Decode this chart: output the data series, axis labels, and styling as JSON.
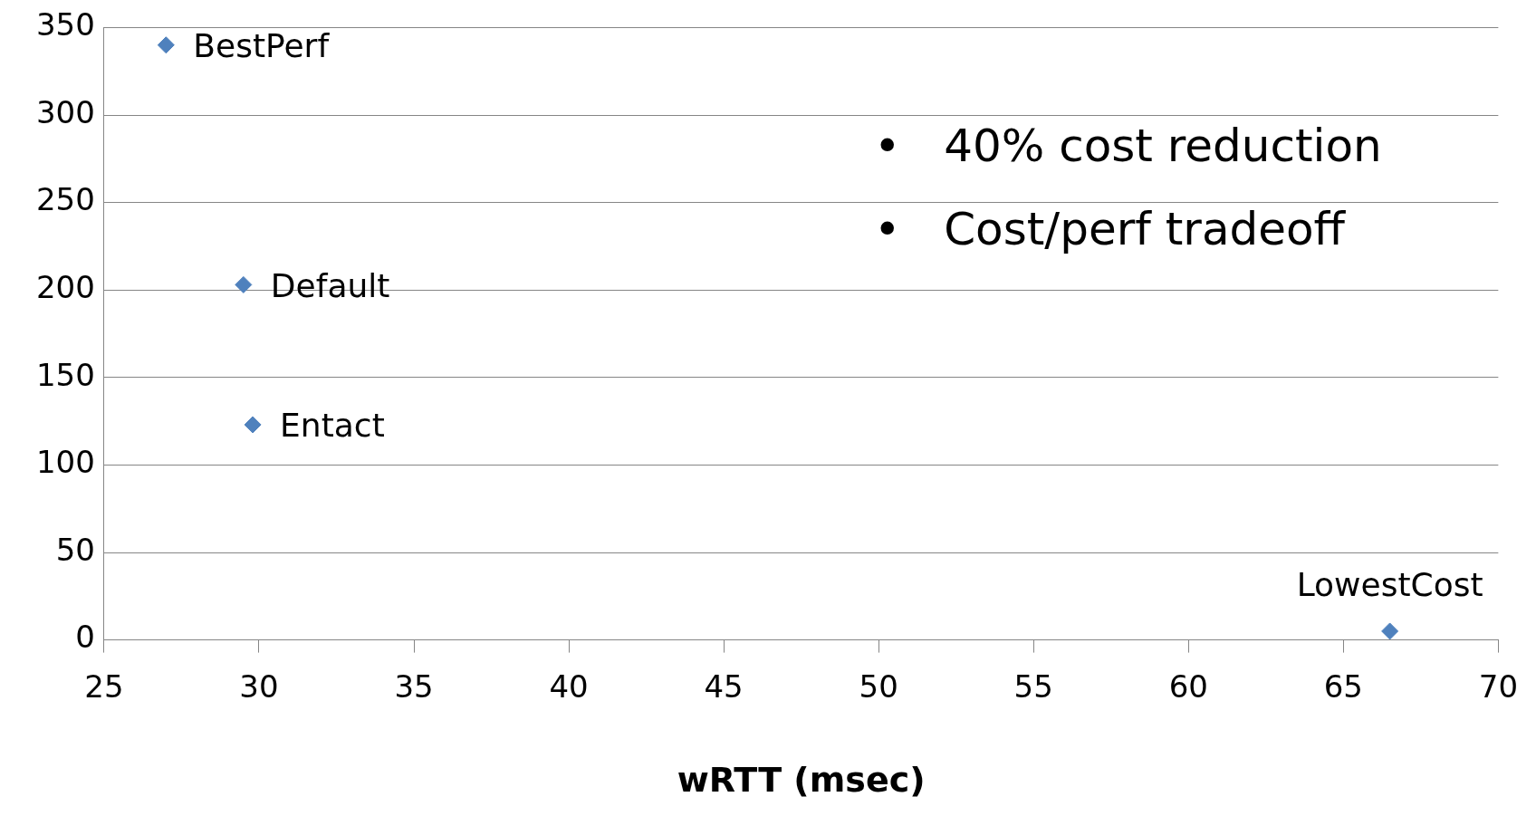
{
  "chart_data": {
    "type": "scatter",
    "xlabel": "wRTT (msec)",
    "x": [
      27,
      29.5,
      29.8,
      66.5
    ],
    "values": [
      340,
      203,
      123,
      5
    ],
    "color": "#4f81bd",
    "marker": "diamond",
    "xlim": [
      25,
      70
    ],
    "xticks": [
      25,
      30,
      35,
      40,
      45,
      50,
      55,
      60,
      65,
      70
    ],
    "ylim": [
      0,
      350
    ],
    "yticks": [
      0,
      50,
      100,
      150,
      200,
      250,
      300,
      350
    ],
    "grid": "y",
    "legend": false,
    "annotations": [
      {
        "text": "BestPerf",
        "x": 27,
        "y": 340
      },
      {
        "text": "Default",
        "x": 29.5,
        "y": 203
      },
      {
        "text": "Entact",
        "x": 29.8,
        "y": 123
      },
      {
        "text": "LowestCost",
        "x": 66.5,
        "y": 5
      },
      "•   40% cost reduction",
      "•   Cost/perf tradeoff"
    ]
  }
}
